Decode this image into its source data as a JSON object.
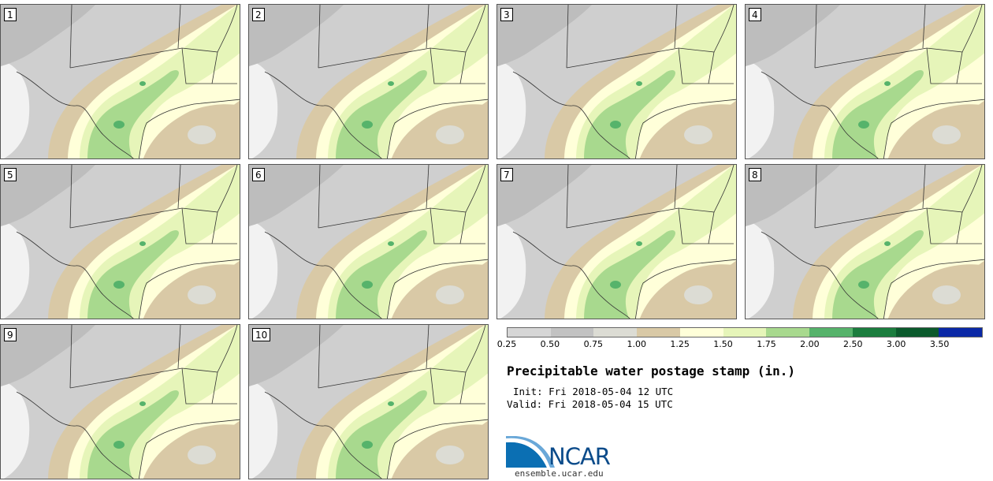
{
  "panels": [
    {
      "label": "1"
    },
    {
      "label": "2"
    },
    {
      "label": "3"
    },
    {
      "label": "4"
    },
    {
      "label": "5"
    },
    {
      "label": "6"
    },
    {
      "label": "7"
    },
    {
      "label": "8"
    },
    {
      "label": "9"
    },
    {
      "label": "10"
    }
  ],
  "legend": {
    "colors": [
      "#d6d6d6",
      "#c2c2c2",
      "#dcdcd4",
      "#d9c9a6",
      "#ffffd9",
      "#e6f5b9",
      "#a8d98e",
      "#56b36b",
      "#1b7d3e",
      "#0b5a2c",
      "#0a28a6"
    ],
    "tick_labels": [
      "0.25",
      "0.50",
      "0.75",
      "1.00",
      "1.25",
      "1.50",
      "1.75",
      "2.00",
      "2.50",
      "3.00",
      "3.50"
    ]
  },
  "title": "Precipitable water postage stamp (in.)",
  "init_text": "Init: Fri 2018-05-04 12 UTC",
  "valid_text": "Valid: Fri 2018-05-04 15 UTC",
  "logo": {
    "text": "NCAR",
    "brand_color": "#0b4b8a"
  },
  "website": "ensemble.ucar.edu"
}
